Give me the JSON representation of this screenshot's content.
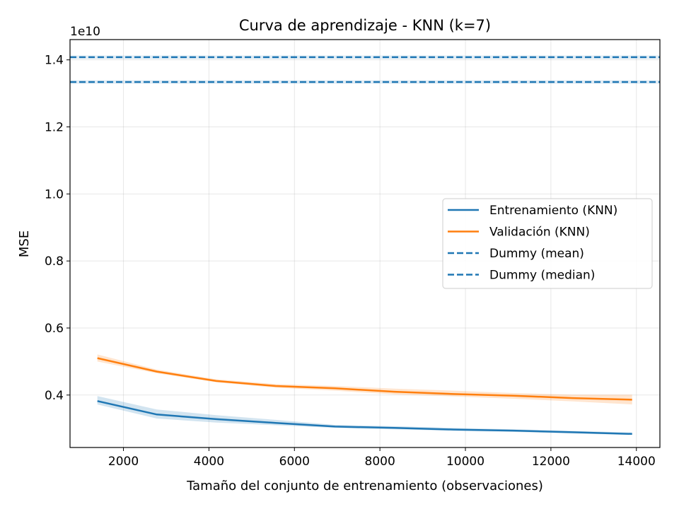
{
  "chart_data": {
    "type": "line",
    "title": "Curva de aprendizaje - KNN (k=7)",
    "xlabel": "Tamaño del conjunto de entrenamiento (observaciones)",
    "ylabel": "MSE",
    "y_offset_label": "1e10",
    "y_scale": 10000000000.0,
    "xlim": [
      750,
      14550
    ],
    "ylim": [
      0.2435,
      1.4605
    ],
    "grid": true,
    "legend_position": "center-right",
    "x_ticks": [
      2000,
      4000,
      6000,
      8000,
      10000,
      12000,
      14000
    ],
    "y_ticks": [
      0.4,
      0.6,
      0.8,
      1.0,
      1.2,
      1.4
    ],
    "x": [
      1390,
      2780,
      4170,
      5560,
      6950,
      8340,
      9730,
      11120,
      12510,
      13900
    ],
    "series": [
      {
        "name": "Entrenamiento (KNN)",
        "style": "solid",
        "color": "#1f77b4",
        "values": [
          0.382,
          0.342,
          0.328,
          0.317,
          0.306,
          0.302,
          0.297,
          0.294,
          0.289,
          0.284
        ],
        "band_low": [
          0.372,
          0.33,
          0.318,
          0.31,
          0.302,
          0.298,
          0.293,
          0.29,
          0.285,
          0.281
        ],
        "band_high": [
          0.397,
          0.357,
          0.34,
          0.326,
          0.311,
          0.307,
          0.302,
          0.298,
          0.293,
          0.288
        ]
      },
      {
        "name": "Validación (KNN)",
        "style": "solid",
        "color": "#ff7f0e",
        "values": [
          0.51,
          0.47,
          0.442,
          0.427,
          0.42,
          0.41,
          0.403,
          0.398,
          0.391,
          0.386
        ],
        "band_low": [
          0.5,
          0.465,
          0.438,
          0.422,
          0.413,
          0.402,
          0.396,
          0.389,
          0.381,
          0.372
        ],
        "band_high": [
          0.521,
          0.476,
          0.447,
          0.433,
          0.427,
          0.419,
          0.413,
          0.406,
          0.401,
          0.401
        ]
      },
      {
        "name": "Dummy (mean)",
        "style": "dashed",
        "color": "#1f77b4",
        "constant": 1.334,
        "band_low": 1.329,
        "band_high": 1.339
      },
      {
        "name": "Dummy (median)",
        "style": "dashed",
        "color": "#1f77b4",
        "constant": 1.408,
        "band_low": 1.403,
        "band_high": 1.413
      }
    ]
  }
}
